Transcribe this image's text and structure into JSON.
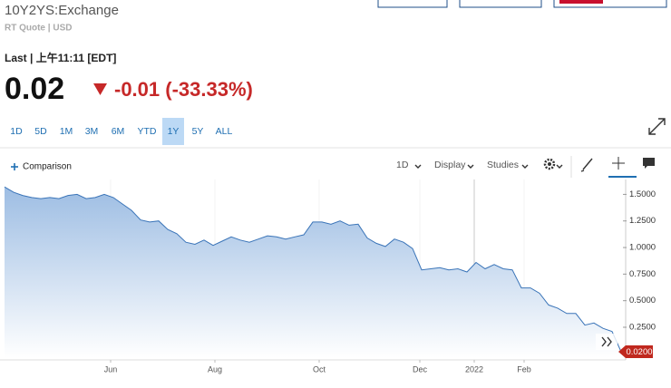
{
  "header": {
    "symbol": "10Y2YS:Exchange",
    "subtitle": "RT Quote | USD",
    "last_label": "Last | 上午11:11 [EDT]",
    "price": "0.02",
    "change": "-0.01 (-33.33%)"
  },
  "range_buttons": [
    "1D",
    "5D",
    "1M",
    "3M",
    "6M",
    "YTD",
    "1Y",
    "5Y",
    "ALL"
  ],
  "selected_range": "1Y",
  "toolbar": {
    "comparison": "Comparison",
    "interval": "1D",
    "display": "Display",
    "studies": "Studies"
  },
  "chart_data": {
    "type": "area",
    "color": "#3a74b8",
    "values": [
      1.57,
      1.52,
      1.49,
      1.47,
      1.46,
      1.47,
      1.46,
      1.49,
      1.5,
      1.46,
      1.47,
      1.5,
      1.47,
      1.41,
      1.35,
      1.26,
      1.24,
      1.25,
      1.17,
      1.13,
      1.05,
      1.03,
      1.07,
      1.02,
      1.06,
      1.1,
      1.07,
      1.05,
      1.08,
      1.11,
      1.1,
      1.08,
      1.1,
      1.12,
      1.24,
      1.24,
      1.22,
      1.25,
      1.21,
      1.22,
      1.09,
      1.04,
      1.01,
      1.08,
      1.05,
      0.99,
      0.79,
      0.8,
      0.81,
      0.79,
      0.8,
      0.77,
      0.86,
      0.8,
      0.84,
      0.8,
      0.79,
      0.62,
      0.62,
      0.57,
      0.46,
      0.43,
      0.38,
      0.38,
      0.27,
      0.29,
      0.24,
      0.21,
      0.02
    ],
    "last_value_label": "0.0200",
    "xlim": [
      0,
      68.5
    ],
    "xticks": [
      {
        "value": 11.7,
        "label": "Jun"
      },
      {
        "value": 23.2,
        "label": "Aug"
      },
      {
        "value": 34.7,
        "label": "Oct"
      },
      {
        "value": 45.8,
        "label": "Dec"
      },
      {
        "value": 51.8,
        "label": "2022"
      },
      {
        "value": 57.3,
        "label": "Feb"
      }
    ],
    "ylim": [
      -0.04,
      1.64
    ],
    "yticks": [
      {
        "value": 1.5,
        "label": "1.5000"
      },
      {
        "value": 1.25,
        "label": "1.2500"
      },
      {
        "value": 1,
        "label": "1.0000"
      },
      {
        "value": 0.75,
        "label": "0.7500"
      },
      {
        "value": 0.5,
        "label": "0.5000"
      },
      {
        "value": 0.25,
        "label": "0.2500"
      }
    ]
  }
}
